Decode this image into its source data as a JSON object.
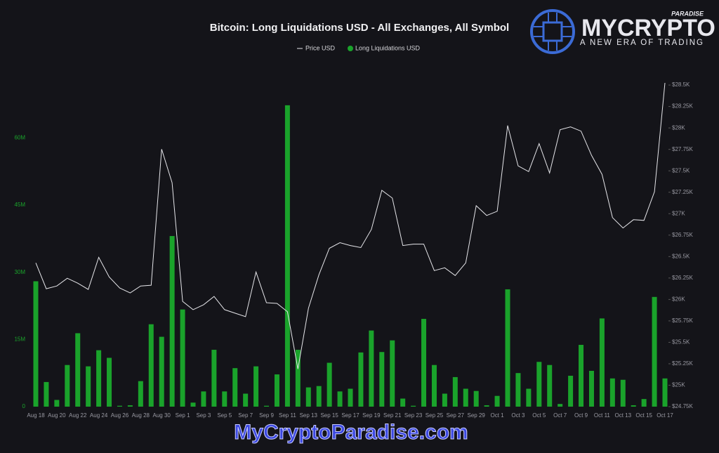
{
  "chart_data": {
    "type": "bar",
    "title": "Bitcoin: Long Liquidations USD - All Exchanges, All Symbol",
    "categories": [
      "Aug 18",
      null,
      "Aug 20",
      null,
      "Aug 22",
      null,
      "Aug 24",
      null,
      "Aug 26",
      null,
      "Aug 28",
      null,
      "Aug 30",
      null,
      "Sep 1",
      null,
      "Sep 3",
      null,
      "Sep 5",
      null,
      "Sep 7",
      null,
      "Sep 9",
      null,
      "Sep 11",
      null,
      "Sep 13",
      null,
      "Sep 15",
      null,
      "Sep 17",
      null,
      "Sep 19",
      null,
      "Sep 21",
      null,
      "Sep 23",
      null,
      "Sep 25",
      null,
      "Sep 27",
      null,
      "Sep 29",
      null,
      "Oct 1",
      null,
      "Oct 3",
      null,
      "Oct 5",
      null,
      "Oct 7",
      null,
      "Oct 9",
      null,
      "Oct 11",
      null,
      "Oct 13",
      null,
      "Oct 15",
      null,
      "Oct 17"
    ],
    "series": [
      {
        "name": "Price USD",
        "type": "line",
        "axis": "y2",
        "color": "#e6e6ea",
        "values": [
          26426,
          26125,
          26157,
          26247,
          26190,
          26117,
          26491,
          26263,
          26133,
          26076,
          26157,
          26166,
          27752,
          27361,
          25978,
          25881,
          25938,
          26035,
          25881,
          25840,
          25799,
          26320,
          25962,
          25954,
          25856,
          25189,
          25897,
          26288,
          26597,
          26662,
          26629,
          26605,
          26816,
          27272,
          27182,
          26629,
          26645,
          26645,
          26336,
          26369,
          26279,
          26426,
          27093,
          26979,
          27028,
          28028,
          27557,
          27491,
          27817,
          27475,
          27980,
          28012,
          27963,
          27679,
          27459,
          26955,
          26833,
          26930,
          26922,
          27256,
          28525
        ]
      },
      {
        "name": "Long Liquidations USD",
        "type": "bar",
        "axis": "y",
        "color": "#1aa32b",
        "values": [
          28000000,
          5500000,
          1500000,
          9300000,
          16400000,
          9000000,
          12600000,
          10900000,
          200000,
          300000,
          5700000,
          18400000,
          15600000,
          38100000,
          21700000,
          900000,
          3400000,
          12700000,
          3400000,
          8600000,
          2900000,
          9000000,
          200000,
          7200000,
          67300000,
          12700000,
          4300000,
          4600000,
          9800000,
          3400000,
          4000000,
          12100000,
          17000000,
          12200000,
          14800000,
          1800000,
          200000,
          19600000,
          9300000,
          2900000,
          6600000,
          4000000,
          3500000,
          300000,
          2400000,
          26200000,
          7500000,
          4000000,
          10000000,
          9300000,
          600000,
          6900000,
          13800000,
          8000000,
          19700000,
          6300000,
          6000000,
          300000,
          1700000,
          24500000,
          6300000
        ]
      }
    ],
    "ylim": [
      0,
      74500000
    ],
    "yticks": [
      {
        "value": 0,
        "label": "0"
      },
      {
        "value": 15000000,
        "label": "15M"
      },
      {
        "value": 30000000,
        "label": "30M"
      },
      {
        "value": 45000000,
        "label": "45M"
      },
      {
        "value": 60000000,
        "label": "60M"
      }
    ],
    "y2lim": [
      24750,
      28640
    ],
    "y2ticks": [
      {
        "value": 24750,
        "label": "$24.75K"
      },
      {
        "value": 25000,
        "label": "$25K"
      },
      {
        "value": 25250,
        "label": "$25.25K"
      },
      {
        "value": 25500,
        "label": "$25.5K"
      },
      {
        "value": 25750,
        "label": "$25.75K"
      },
      {
        "value": 26000,
        "label": "$26K"
      },
      {
        "value": 26250,
        "label": "$26.25K"
      },
      {
        "value": 26500,
        "label": "$26.5K"
      },
      {
        "value": 26750,
        "label": "$26.75K"
      },
      {
        "value": 27000,
        "label": "$27K"
      },
      {
        "value": 27250,
        "label": "$27.25K"
      },
      {
        "value": 27500,
        "label": "$27.5K"
      },
      {
        "value": 27750,
        "label": "$27.75K"
      },
      {
        "value": 28000,
        "label": "$28K"
      },
      {
        "value": 28250,
        "label": "$28.25K"
      },
      {
        "value": 28500,
        "label": "$28.5K"
      }
    ],
    "ytick_color": "#1aa32b",
    "grid": false
  },
  "branding": {
    "logo_main": "MYCRYPTO",
    "logo_sup": "PARADISE",
    "tagline": "A NEW ERA OF TRADING",
    "watermark": "MyCryptoParadise.com"
  }
}
